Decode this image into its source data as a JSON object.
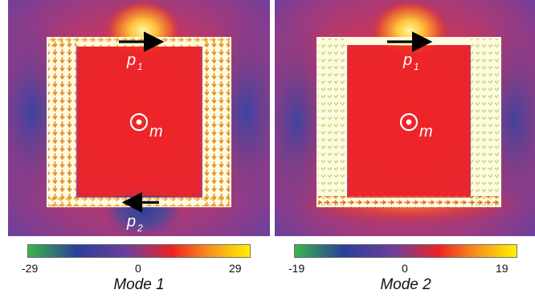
{
  "panels": [
    {
      "name": "mode-1",
      "title": "Mode 1",
      "colorbar": {
        "min": "-29",
        "mid": "0",
        "max": "29"
      },
      "labels": {
        "p1_main": "p",
        "p1_sub": "1",
        "p2_main": "p",
        "p2_sub": "2",
        "m": "m"
      }
    },
    {
      "name": "mode-2",
      "title": "Mode 2",
      "colorbar": {
        "min": "-19",
        "mid": "0",
        "max": "19"
      },
      "labels": {
        "p1_main": "p",
        "p1_sub": "1",
        "m": "m"
      }
    }
  ],
  "colors": {
    "field_far": "#6f3f9a",
    "field_mid": "#c23a5e",
    "field_core": "#ee2325",
    "field_hot": "#ffd23a",
    "field_cold": "#2a3f9a",
    "frame_fill": "#fffbe0",
    "arrow_main": "#000000",
    "vector_arrows": "#e89a2a",
    "colorbar_stops": [
      "#3cb54a",
      "#2a3f9a",
      "#6f3f9a",
      "#ee2325",
      "#f7941d",
      "#fff200"
    ]
  }
}
